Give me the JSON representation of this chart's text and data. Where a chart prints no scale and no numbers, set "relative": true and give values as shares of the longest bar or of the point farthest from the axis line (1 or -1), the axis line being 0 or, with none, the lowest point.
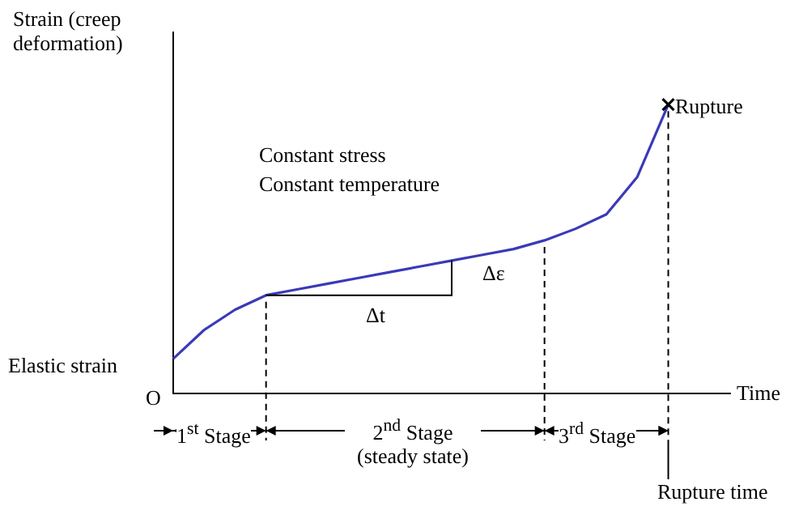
{
  "chart_data": {
    "type": "line",
    "relative": true,
    "xlabel": "Time",
    "ylabel": "Strain (creep deformation)",
    "categories": [
      null,
      null,
      null,
      null,
      null,
      null,
      null,
      null,
      null,
      null,
      null,
      null,
      null,
      null,
      null,
      null,
      null,
      null,
      null
    ],
    "series": [
      {
        "color": "#3a3ab8",
        "values": [
          0.12,
          0.22,
          0.29,
          0.34,
          0.36,
          0.38,
          0.4,
          0.42,
          0.44,
          0.46,
          0.48,
          0.5,
          0.53,
          0.57,
          0.62,
          0.75,
          1,
          null,
          null
        ]
      }
    ],
    "annotations": [
      "Rupture",
      "Constant stress",
      "Constant temperature",
      "Δt",
      "Δε",
      "Elastic strain",
      "O",
      "1$^{st}$ Stage",
      "2$^{nd}$ Stage (steady state)",
      "3$^{rd}$ Stage",
      "Rupture time"
    ],
    "grid": false,
    "legend": false
  }
}
